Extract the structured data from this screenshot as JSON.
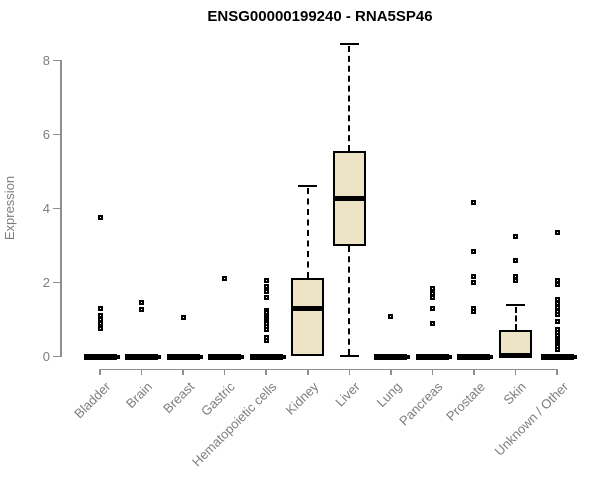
{
  "page_title": "ENSG00000199240 - RNA5SP46",
  "chart_data": {
    "type": "boxplot",
    "title": "ENSG00000199240 - RNA5SP46",
    "xlabel": "",
    "ylabel": "Expression",
    "ylim": [
      0,
      8.6
    ],
    "yticks": [
      0,
      2,
      4,
      6,
      8
    ],
    "grid": false,
    "legend": null,
    "colors": {
      "box_fill": "#ede4c6",
      "box_border": "#000000",
      "median": "#000000",
      "axis": "#8f8f8f",
      "label_text": "#7d7d7d",
      "title_text": "#000000"
    },
    "categories": [
      "Bladder",
      "Brain",
      "Breast",
      "Gastric",
      "Hematopoietic cells",
      "Kidney",
      "Liver",
      "Lung",
      "Pancreas",
      "Prostate",
      "Skin",
      "Unknown / Other"
    ],
    "series": [
      {
        "category": "Bladder",
        "q1": 0,
        "median": 0,
        "q3": 0,
        "whisker_low": 0,
        "whisker_high": 0,
        "outliers": [
          3.75,
          1.3,
          1.1,
          1.0,
          0.88,
          0.75
        ]
      },
      {
        "category": "Brain",
        "q1": 0,
        "median": 0,
        "q3": 0,
        "whisker_low": 0,
        "whisker_high": 0,
        "outliers": [
          1.45,
          1.28
        ]
      },
      {
        "category": "Breast",
        "q1": 0,
        "median": 0,
        "q3": 0,
        "whisker_low": 0,
        "whisker_high": 0,
        "outliers": [
          1.05
        ]
      },
      {
        "category": "Gastric",
        "q1": 0,
        "median": 0,
        "q3": 0,
        "whisker_low": 0,
        "whisker_high": 0,
        "outliers": [
          2.1
        ]
      },
      {
        "category": "Hematopoietic cells",
        "q1": 0,
        "median": 0,
        "q3": 0,
        "whisker_low": 0,
        "whisker_high": 0,
        "outliers": [
          2.05,
          1.9,
          1.75,
          1.6,
          1.25,
          1.18,
          1.12,
          1.06,
          1.0,
          0.94,
          0.88,
          0.8,
          0.72,
          0.52,
          0.42
        ]
      },
      {
        "category": "Kidney",
        "q1": 0.02,
        "median": 1.31,
        "q3": 2.12,
        "whisker_low": 0.02,
        "whisker_high": 4.6,
        "outliers": []
      },
      {
        "category": "Liver",
        "q1": 2.99,
        "median": 4.28,
        "q3": 5.55,
        "whisker_low": 0.02,
        "whisker_high": 8.45,
        "outliers": []
      },
      {
        "category": "Lung",
        "q1": 0,
        "median": 0,
        "q3": 0,
        "whisker_low": 0,
        "whisker_high": 0,
        "outliers": [
          1.08
        ]
      },
      {
        "category": "Pancreas",
        "q1": 0,
        "median": 0,
        "q3": 0,
        "whisker_low": 0,
        "whisker_high": 0,
        "outliers": [
          1.85,
          1.7,
          1.6,
          1.3,
          0.9
        ]
      },
      {
        "category": "Prostate",
        "q1": 0,
        "median": 0,
        "q3": 0,
        "whisker_low": 0,
        "whisker_high": 0,
        "outliers": [
          4.15,
          2.85,
          2.15,
          2.0,
          1.3,
          1.22
        ]
      },
      {
        "category": "Skin",
        "q1": 0.02,
        "median": 0.02,
        "q3": 0.72,
        "whisker_low": 0.02,
        "whisker_high": 1.39,
        "outliers": [
          3.25,
          2.6,
          2.15,
          2.05
        ]
      },
      {
        "category": "Unknown / Other",
        "q1": 0,
        "median": 0,
        "q3": 0,
        "whisker_low": 0,
        "whisker_high": 0,
        "outliers": [
          3.35,
          2.05,
          1.95,
          1.55,
          1.42,
          1.32,
          1.22,
          1.14,
          0.95,
          0.72,
          0.64,
          0.57,
          0.5,
          0.44,
          0.38,
          0.32,
          0.26,
          0.2
        ]
      }
    ]
  }
}
